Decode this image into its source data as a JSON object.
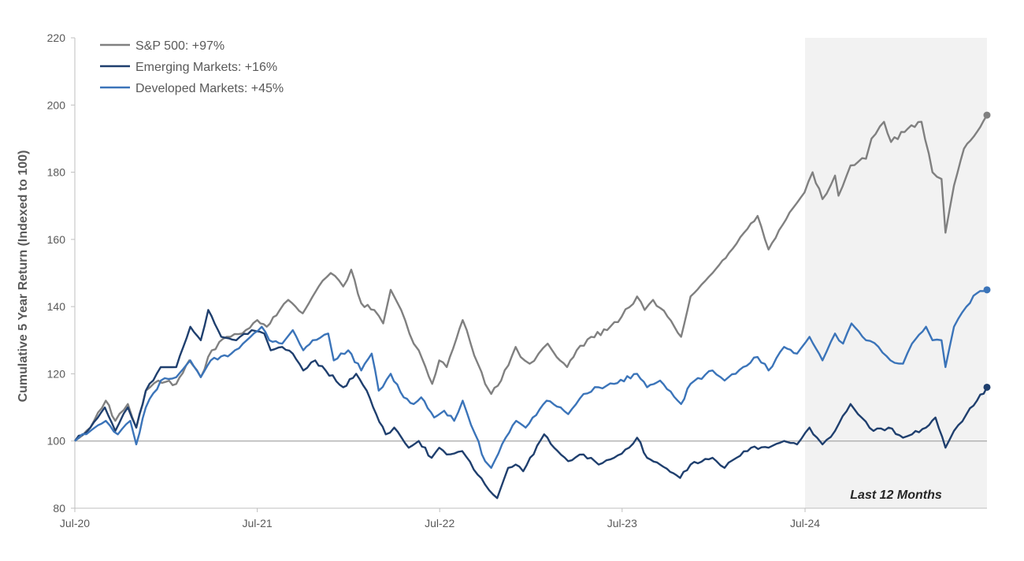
{
  "chart_data": {
    "type": "line",
    "ylabel": "Cumulative 5 Year Return (Indexed to 100)",
    "xlabel": "",
    "ylim": [
      80,
      220
    ],
    "yticks": [
      80,
      100,
      120,
      140,
      160,
      180,
      200,
      220
    ],
    "xlim": [
      "2020-07-01",
      "2025-06-30"
    ],
    "xticks": [
      {
        "date": "2020-07-01",
        "label": "Jul-20"
      },
      {
        "date": "2021-07-01",
        "label": "Jul-21"
      },
      {
        "date": "2022-07-01",
        "label": "Jul-22"
      },
      {
        "date": "2023-07-01",
        "label": "Jul-23"
      },
      {
        "date": "2024-07-01",
        "label": "Jul-24"
      }
    ],
    "reference_line": 100,
    "grid": false,
    "legend_position": "top-left",
    "shaded_region": {
      "start": "2024-07-01",
      "end": "2025-06-30",
      "label": "Last 12 Months",
      "color": "#f2f2f2"
    },
    "series": [
      {
        "name": "S&P 500:  +97%",
        "color": "#808080",
        "end_marker": true,
        "points": [
          [
            "2020-07-01",
            100
          ],
          [
            "2020-08-01",
            104
          ],
          [
            "2020-09-01",
            112
          ],
          [
            "2020-09-20",
            106
          ],
          [
            "2020-10-15",
            111
          ],
          [
            "2020-11-01",
            104
          ],
          [
            "2020-11-20",
            115
          ],
          [
            "2020-12-15",
            118
          ],
          [
            "2021-01-20",
            117
          ],
          [
            "2021-02-15",
            124
          ],
          [
            "2021-03-10",
            119
          ],
          [
            "2021-04-01",
            127
          ],
          [
            "2021-05-01",
            131
          ],
          [
            "2021-06-01",
            132
          ],
          [
            "2021-07-01",
            136
          ],
          [
            "2021-07-20",
            134
          ],
          [
            "2021-08-15",
            139
          ],
          [
            "2021-09-01",
            142
          ],
          [
            "2021-09-30",
            138
          ],
          [
            "2021-11-01",
            146
          ],
          [
            "2021-11-25",
            150
          ],
          [
            "2021-12-20",
            146
          ],
          [
            "2022-01-05",
            151
          ],
          [
            "2022-01-25",
            141
          ],
          [
            "2022-02-20",
            139
          ],
          [
            "2022-03-10",
            135
          ],
          [
            "2022-03-25",
            145
          ],
          [
            "2022-04-15",
            139
          ],
          [
            "2022-05-10",
            129
          ],
          [
            "2022-05-20",
            127
          ],
          [
            "2022-06-16",
            117
          ],
          [
            "2022-06-30",
            124
          ],
          [
            "2022-07-15",
            122
          ],
          [
            "2022-08-16",
            136
          ],
          [
            "2022-09-01",
            129
          ],
          [
            "2022-09-30",
            117
          ],
          [
            "2022-10-12",
            114
          ],
          [
            "2022-11-01",
            118
          ],
          [
            "2022-11-30",
            128
          ],
          [
            "2022-12-10",
            125
          ],
          [
            "2022-12-28",
            123
          ],
          [
            "2023-01-15",
            126
          ],
          [
            "2023-02-02",
            129
          ],
          [
            "2023-02-20",
            125
          ],
          [
            "2023-03-13",
            122
          ],
          [
            "2023-04-01",
            127
          ],
          [
            "2023-04-30",
            131
          ],
          [
            "2023-06-01",
            133
          ],
          [
            "2023-06-30",
            137
          ],
          [
            "2023-07-31",
            143
          ],
          [
            "2023-08-15",
            139
          ],
          [
            "2023-09-01",
            142
          ],
          [
            "2023-09-30",
            137
          ],
          [
            "2023-10-27",
            131
          ],
          [
            "2023-11-15",
            143
          ],
          [
            "2023-12-29",
            150
          ],
          [
            "2024-01-31",
            156
          ],
          [
            "2024-03-01",
            162
          ],
          [
            "2024-03-28",
            167
          ],
          [
            "2024-04-19",
            157
          ],
          [
            "2024-05-31",
            168
          ],
          [
            "2024-06-30",
            174
          ],
          [
            "2024-07-16",
            180
          ],
          [
            "2024-08-05",
            172
          ],
          [
            "2024-08-30",
            179
          ],
          [
            "2024-09-06",
            173
          ],
          [
            "2024-09-30",
            182
          ],
          [
            "2024-10-31",
            184
          ],
          [
            "2024-11-11",
            190
          ],
          [
            "2024-12-06",
            195
          ],
          [
            "2024-12-20",
            189
          ],
          [
            "2025-01-23",
            193
          ],
          [
            "2025-02-19",
            195
          ],
          [
            "2025-03-13",
            180
          ],
          [
            "2025-03-31",
            178
          ],
          [
            "2025-04-08",
            162
          ],
          [
            "2025-04-25",
            176
          ],
          [
            "2025-05-15",
            187
          ],
          [
            "2025-06-10",
            192
          ],
          [
            "2025-06-30",
            197
          ]
        ]
      },
      {
        "name": "Emerging Markets:  +16%",
        "color": "#1f3f6e",
        "end_marker": true,
        "points": [
          [
            "2020-07-01",
            100
          ],
          [
            "2020-08-01",
            104
          ],
          [
            "2020-08-30",
            110
          ],
          [
            "2020-09-20",
            103
          ],
          [
            "2020-10-15",
            110
          ],
          [
            "2020-11-01",
            104
          ],
          [
            "2020-11-20",
            115
          ],
          [
            "2020-12-20",
            122
          ],
          [
            "2021-01-20",
            122
          ],
          [
            "2021-02-17",
            134
          ],
          [
            "2021-03-10",
            130
          ],
          [
            "2021-03-25",
            139
          ],
          [
            "2021-04-20",
            131
          ],
          [
            "2021-05-20",
            130
          ],
          [
            "2021-06-20",
            133
          ],
          [
            "2021-07-15",
            132
          ],
          [
            "2021-07-28",
            127
          ],
          [
            "2021-08-20",
            128
          ],
          [
            "2021-09-10",
            126
          ],
          [
            "2021-10-01",
            121
          ],
          [
            "2021-10-25",
            124
          ],
          [
            "2021-11-15",
            121
          ],
          [
            "2021-12-20",
            116
          ],
          [
            "2022-01-15",
            120
          ],
          [
            "2022-02-05",
            115
          ],
          [
            "2022-02-24",
            108
          ],
          [
            "2022-03-15",
            102
          ],
          [
            "2022-04-01",
            104
          ],
          [
            "2022-04-30",
            98
          ],
          [
            "2022-05-20",
            100
          ],
          [
            "2022-06-15",
            95
          ],
          [
            "2022-06-30",
            98
          ],
          [
            "2022-07-15",
            96
          ],
          [
            "2022-08-15",
            97
          ],
          [
            "2022-09-15",
            90
          ],
          [
            "2022-09-30",
            87
          ],
          [
            "2022-10-24",
            83
          ],
          [
            "2022-11-15",
            92
          ],
          [
            "2022-11-30",
            93
          ],
          [
            "2022-12-15",
            91
          ],
          [
            "2023-01-26",
            102
          ],
          [
            "2023-02-15",
            98
          ],
          [
            "2023-03-15",
            94
          ],
          [
            "2023-04-15",
            96
          ],
          [
            "2023-05-15",
            93
          ],
          [
            "2023-06-15",
            95
          ],
          [
            "2023-07-15",
            98
          ],
          [
            "2023-07-31",
            101
          ],
          [
            "2023-08-20",
            95
          ],
          [
            "2023-09-15",
            93
          ],
          [
            "2023-10-25",
            89
          ],
          [
            "2023-11-15",
            93
          ],
          [
            "2023-12-29",
            95
          ],
          [
            "2024-01-22",
            92
          ],
          [
            "2024-02-15",
            95
          ],
          [
            "2024-03-15",
            98
          ],
          [
            "2024-04-19",
            98
          ],
          [
            "2024-05-20",
            100
          ],
          [
            "2024-06-15",
            99
          ],
          [
            "2024-07-10",
            104
          ],
          [
            "2024-07-25",
            101
          ],
          [
            "2024-08-05",
            99
          ],
          [
            "2024-08-30",
            103
          ],
          [
            "2024-09-30",
            111
          ],
          [
            "2024-10-15",
            108
          ],
          [
            "2024-11-15",
            103
          ],
          [
            "2024-12-15",
            104
          ],
          [
            "2025-01-13",
            101
          ],
          [
            "2025-01-31",
            102
          ],
          [
            "2025-02-28",
            104
          ],
          [
            "2025-03-19",
            107
          ],
          [
            "2025-04-08",
            98
          ],
          [
            "2025-04-25",
            103
          ],
          [
            "2025-05-20",
            108
          ],
          [
            "2025-06-10",
            112
          ],
          [
            "2025-06-30",
            116
          ]
        ]
      },
      {
        "name": "Developed Markets:  +45%",
        "color": "#3b74b9",
        "end_marker": true,
        "points": [
          [
            "2020-07-01",
            100
          ],
          [
            "2020-08-01",
            103
          ],
          [
            "2020-09-01",
            106
          ],
          [
            "2020-09-25",
            102
          ],
          [
            "2020-10-20",
            106
          ],
          [
            "2020-11-01",
            99
          ],
          [
            "2020-11-20",
            110
          ],
          [
            "2020-12-20",
            118
          ],
          [
            "2021-01-20",
            119
          ],
          [
            "2021-02-17",
            124
          ],
          [
            "2021-03-10",
            119
          ],
          [
            "2021-03-30",
            124
          ],
          [
            "2021-05-10",
            126
          ],
          [
            "2021-06-10",
            130
          ],
          [
            "2021-07-10",
            134
          ],
          [
            "2021-07-25",
            130
          ],
          [
            "2021-08-20",
            129
          ],
          [
            "2021-09-10",
            133
          ],
          [
            "2021-10-01",
            127
          ],
          [
            "2021-10-20",
            130
          ],
          [
            "2021-11-20",
            132
          ],
          [
            "2021-12-01",
            124
          ],
          [
            "2021-12-30",
            127
          ],
          [
            "2022-01-25",
            121
          ],
          [
            "2022-02-15",
            126
          ],
          [
            "2022-03-01",
            115
          ],
          [
            "2022-03-25",
            120
          ],
          [
            "2022-04-20",
            113
          ],
          [
            "2022-05-10",
            111
          ],
          [
            "2022-05-25",
            113
          ],
          [
            "2022-06-20",
            107
          ],
          [
            "2022-07-10",
            109
          ],
          [
            "2022-07-30",
            106
          ],
          [
            "2022-08-16",
            112
          ],
          [
            "2022-09-10",
            102
          ],
          [
            "2022-09-30",
            94
          ],
          [
            "2022-10-12",
            92
          ],
          [
            "2022-11-10",
            101
          ],
          [
            "2022-12-01",
            106
          ],
          [
            "2022-12-20",
            104
          ],
          [
            "2023-01-31",
            112
          ],
          [
            "2023-02-28",
            110
          ],
          [
            "2023-03-15",
            108
          ],
          [
            "2023-04-15",
            114
          ],
          [
            "2023-05-15",
            116
          ],
          [
            "2023-06-15",
            117
          ],
          [
            "2023-07-31",
            120
          ],
          [
            "2023-08-20",
            116
          ],
          [
            "2023-09-15",
            118
          ],
          [
            "2023-10-27",
            111
          ],
          [
            "2023-11-15",
            117
          ],
          [
            "2023-12-29",
            121
          ],
          [
            "2024-01-22",
            118
          ],
          [
            "2024-02-28",
            122
          ],
          [
            "2024-03-28",
            125
          ],
          [
            "2024-04-19",
            121
          ],
          [
            "2024-05-20",
            128
          ],
          [
            "2024-06-15",
            126
          ],
          [
            "2024-07-10",
            131
          ],
          [
            "2024-08-05",
            124
          ],
          [
            "2024-08-30",
            132
          ],
          [
            "2024-09-15",
            129
          ],
          [
            "2024-10-02",
            135
          ],
          [
            "2024-10-31",
            130
          ],
          [
            "2024-11-25",
            128
          ],
          [
            "2024-12-19",
            124
          ],
          [
            "2025-01-13",
            123
          ],
          [
            "2025-01-31",
            129
          ],
          [
            "2025-02-28",
            134
          ],
          [
            "2025-03-13",
            130
          ],
          [
            "2025-03-31",
            130
          ],
          [
            "2025-04-08",
            122
          ],
          [
            "2025-04-25",
            134
          ],
          [
            "2025-05-20",
            140
          ],
          [
            "2025-06-10",
            144
          ],
          [
            "2025-06-30",
            145
          ]
        ]
      }
    ]
  }
}
